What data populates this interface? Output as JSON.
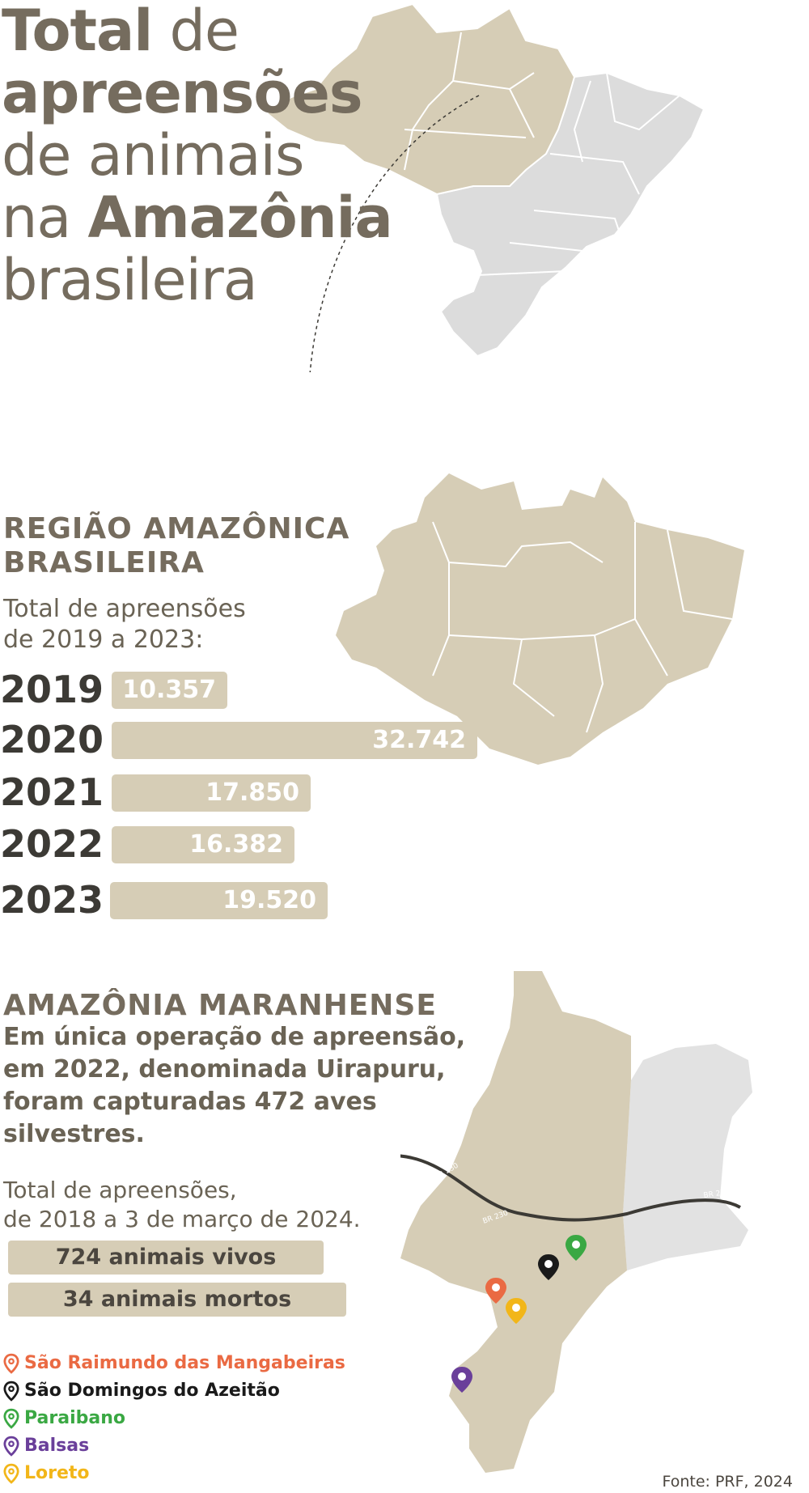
{
  "title": {
    "line1_bold": "Total",
    "line1_rest": " de",
    "line2": "apreensões",
    "line3": "de animais",
    "line4_pre": "na ",
    "line4_bold": "Amazônia",
    "line5": "brasileira"
  },
  "regiao": {
    "heading_line1": "REGIÃO AMAZÔNICA",
    "heading_line2": "BRASILEIRA",
    "sub_line1": "Total de apreensões",
    "sub_line2": "de 2019 a 2023:"
  },
  "chart_data": {
    "type": "bar",
    "categories": [
      "2019",
      "2020",
      "2021",
      "2022",
      "2023"
    ],
    "values": [
      10357,
      32742,
      17850,
      16382,
      19520
    ],
    "labels": [
      "10.357",
      "32.742",
      "17.850",
      "16.382",
      "19.520"
    ],
    "title": "",
    "xlabel": "",
    "ylabel": ""
  },
  "maranhense": {
    "heading": "AMAZÔNIA MARANHENSE",
    "text_lines": [
      "Em única operação de apreensão,",
      "em 2022, denominada Uirapuru,",
      "foram capturadas 472 aves",
      "silvestres."
    ],
    "sub_line1": "Total de apreensões,",
    "sub_line2": "de 2018 a 3 de março de 2024.",
    "pill_alive": "724 animais vivos",
    "pill_dead": "34 animais mortos",
    "road_labels": [
      "BR 230",
      "BR 230",
      "BR 230"
    ]
  },
  "legend": [
    {
      "label": "São Raimundo das Mangabeiras",
      "color": "#ea6a43",
      "icon": "map-pin-icon"
    },
    {
      "label": "São Domingos do Azeitão",
      "color": "#1a1a1a",
      "icon": "map-pin-icon"
    },
    {
      "label": "Paraibano",
      "color": "#3aa843",
      "icon": "map-pin-icon"
    },
    {
      "label": "Balsas",
      "color": "#6a3f9a",
      "icon": "map-pin-icon"
    },
    {
      "label": "Loreto",
      "color": "#f2b619",
      "icon": "map-pin-icon"
    }
  ],
  "source": "Fonte: PRF, 2024",
  "colors": {
    "amazon_beige": "#d6cdb6",
    "rest_gray": "#dcdcdc",
    "text_brown": "#756c5e"
  }
}
